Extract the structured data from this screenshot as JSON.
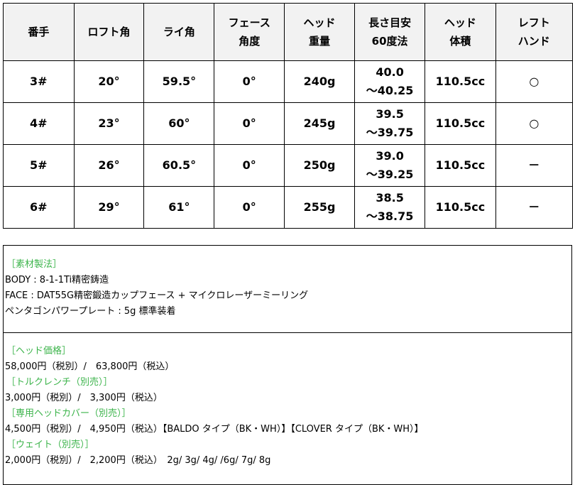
{
  "spec_table": {
    "headers": [
      [
        "番手"
      ],
      [
        "ロフト角"
      ],
      [
        "ライ角"
      ],
      [
        "フェース",
        "角度"
      ],
      [
        "ヘッド",
        "重量"
      ],
      [
        "長さ目安",
        "60度法"
      ],
      [
        "ヘッド",
        "体積"
      ],
      [
        "レフト",
        "ハンド"
      ]
    ],
    "rows": [
      [
        "3#",
        "20°",
        "59.5°",
        "0°",
        "240g",
        [
          "40.0",
          "～40.25"
        ],
        "110.5cc",
        "○"
      ],
      [
        "4#",
        "23°",
        "60°",
        "0°",
        "245g",
        [
          "39.5",
          "～39.75"
        ],
        "110.5cc",
        "○"
      ],
      [
        "5#",
        "26°",
        "60.5°",
        "0°",
        "250g",
        [
          "39.0",
          "～39.25"
        ],
        "110.5cc",
        "－"
      ],
      [
        "6#",
        "29°",
        "61°",
        "0°",
        "255g",
        [
          "38.5",
          "～38.75"
        ],
        "110.5cc",
        "－"
      ]
    ]
  },
  "materials": {
    "heading": "［素材製法］",
    "lines": [
      "BODY : 8-1-1Ti精密鋳造",
      "FACE : DAT55G精密鍛造カップフェース + マイクロレーザーミーリング",
      "ペンタゴンパワープレート : 5g 標準装着"
    ]
  },
  "prices": [
    {
      "heading": "［ヘッド価格］",
      "line": "58,000円（税別）/　63,800円（税込）"
    },
    {
      "heading": "［トルクレンチ（別売）］",
      "line": "3,000円（税別）/　3,300円（税込）"
    },
    {
      "heading": "［専用ヘッドカバー（別売）］",
      "line": "4,500円（税別）/　4,950円（税込）【BALDO タイプ（BK・WH）】【CLOVER タイプ（BK・WH）】"
    },
    {
      "heading": "［ウェイト（別売）］",
      "line": "2,000円（税別）/　2,200円（税込）　2g/ 3g/ 4g/ /6g/ 7g/ 8g"
    }
  ],
  "colors": {
    "heading_green": "#3cb44b",
    "header_bg": "#f2f2f2"
  }
}
